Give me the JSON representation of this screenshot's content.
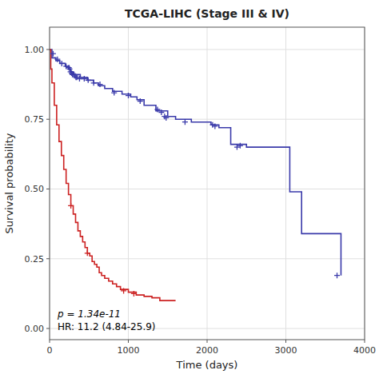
{
  "chart_data": {
    "type": "line",
    "title": "TCGA-LIHC (Stage III & IV)",
    "x_label": "Time (days)",
    "y_label": "Survival probability",
    "xlim": [
      0,
      4000
    ],
    "ylim": [
      -0.04,
      1.08
    ],
    "xticks": [
      0,
      1000,
      2000,
      3000,
      4000
    ],
    "yticks": [
      {
        "value": 0.0,
        "label": "0.00"
      },
      {
        "value": 0.25,
        "label": "0.25"
      },
      {
        "value": 0.5,
        "label": "0.50"
      },
      {
        "value": 0.75,
        "label": "0.75"
      },
      {
        "value": 1.0,
        "label": "1.00"
      }
    ],
    "grid": true,
    "annotations": [
      "p = 1.34e-11",
      "HR: 11.2 (4.84-25.9)"
    ],
    "series": [
      {
        "type": "step",
        "color": "#3a3aaa",
        "x": [
          0,
          30,
          80,
          130,
          200,
          240,
          270,
          300,
          340,
          390,
          430,
          480,
          530,
          560,
          620,
          700,
          800,
          920,
          1030,
          1110,
          1200,
          1350,
          1500,
          1600,
          1700,
          1800,
          1900,
          2050,
          2150,
          2300,
          2350,
          2400,
          2450,
          2500,
          2600,
          3000,
          3050,
          3100,
          3200,
          3250,
          3300,
          3350,
          3700
        ],
        "values": [
          1.0,
          0.97,
          0.96,
          0.95,
          0.94,
          0.93,
          0.92,
          0.91,
          0.91,
          0.9,
          0.9,
          0.89,
          0.89,
          0.88,
          0.87,
          0.86,
          0.85,
          0.84,
          0.83,
          0.82,
          0.8,
          0.78,
          0.76,
          0.75,
          0.75,
          0.74,
          0.74,
          0.73,
          0.72,
          0.66,
          0.66,
          0.66,
          0.66,
          0.65,
          0.65,
          0.65,
          0.49,
          0.49,
          0.34,
          0.34,
          0.34,
          0.34,
          0.19
        ]
      },
      {
        "type": "step",
        "color": "#cc2222",
        "x": [
          0,
          15,
          30,
          60,
          90,
          120,
          150,
          180,
          210,
          240,
          270,
          300,
          330,
          360,
          390,
          420,
          450,
          480,
          510,
          540,
          570,
          600,
          630,
          660,
          700,
          750,
          800,
          850,
          900,
          950,
          1000,
          1050,
          1100,
          1150,
          1200,
          1250,
          1300,
          1350,
          1400,
          1500,
          1600
        ],
        "values": [
          1.0,
          0.93,
          0.88,
          0.8,
          0.73,
          0.67,
          0.62,
          0.57,
          0.52,
          0.48,
          0.44,
          0.41,
          0.38,
          0.35,
          0.33,
          0.31,
          0.29,
          0.27,
          0.26,
          0.24,
          0.23,
          0.22,
          0.2,
          0.19,
          0.18,
          0.17,
          0.16,
          0.15,
          0.14,
          0.14,
          0.13,
          0.13,
          0.12,
          0.12,
          0.115,
          0.115,
          0.11,
          0.11,
          0.1,
          0.1,
          0.1
        ]
      },
      {
        "type": "scatter",
        "marker": "plus",
        "color": "#3a3aaa",
        "x": [
          45,
          100,
          155,
          210,
          245,
          255,
          265,
          280,
          290,
          310,
          325,
          335,
          345,
          380,
          440,
          490,
          560,
          640,
          820,
          1000,
          1150,
          1370,
          1420,
          1460,
          1480,
          1720,
          2070,
          2100,
          2380,
          2420,
          3650
        ],
        "values": [
          0.985,
          0.965,
          0.95,
          0.94,
          0.935,
          0.93,
          0.92,
          0.915,
          0.91,
          0.91,
          0.905,
          0.9,
          0.9,
          0.895,
          0.895,
          0.89,
          0.88,
          0.875,
          0.845,
          0.835,
          0.815,
          0.785,
          0.775,
          0.76,
          0.755,
          0.74,
          0.73,
          0.725,
          0.65,
          0.655,
          0.19
        ]
      },
      {
        "type": "scatter",
        "marker": "plus",
        "color": "#cc2222",
        "x": [
          270,
          480,
          940,
          1070
        ],
        "values": [
          0.44,
          0.27,
          0.135,
          0.125
        ]
      }
    ]
  }
}
